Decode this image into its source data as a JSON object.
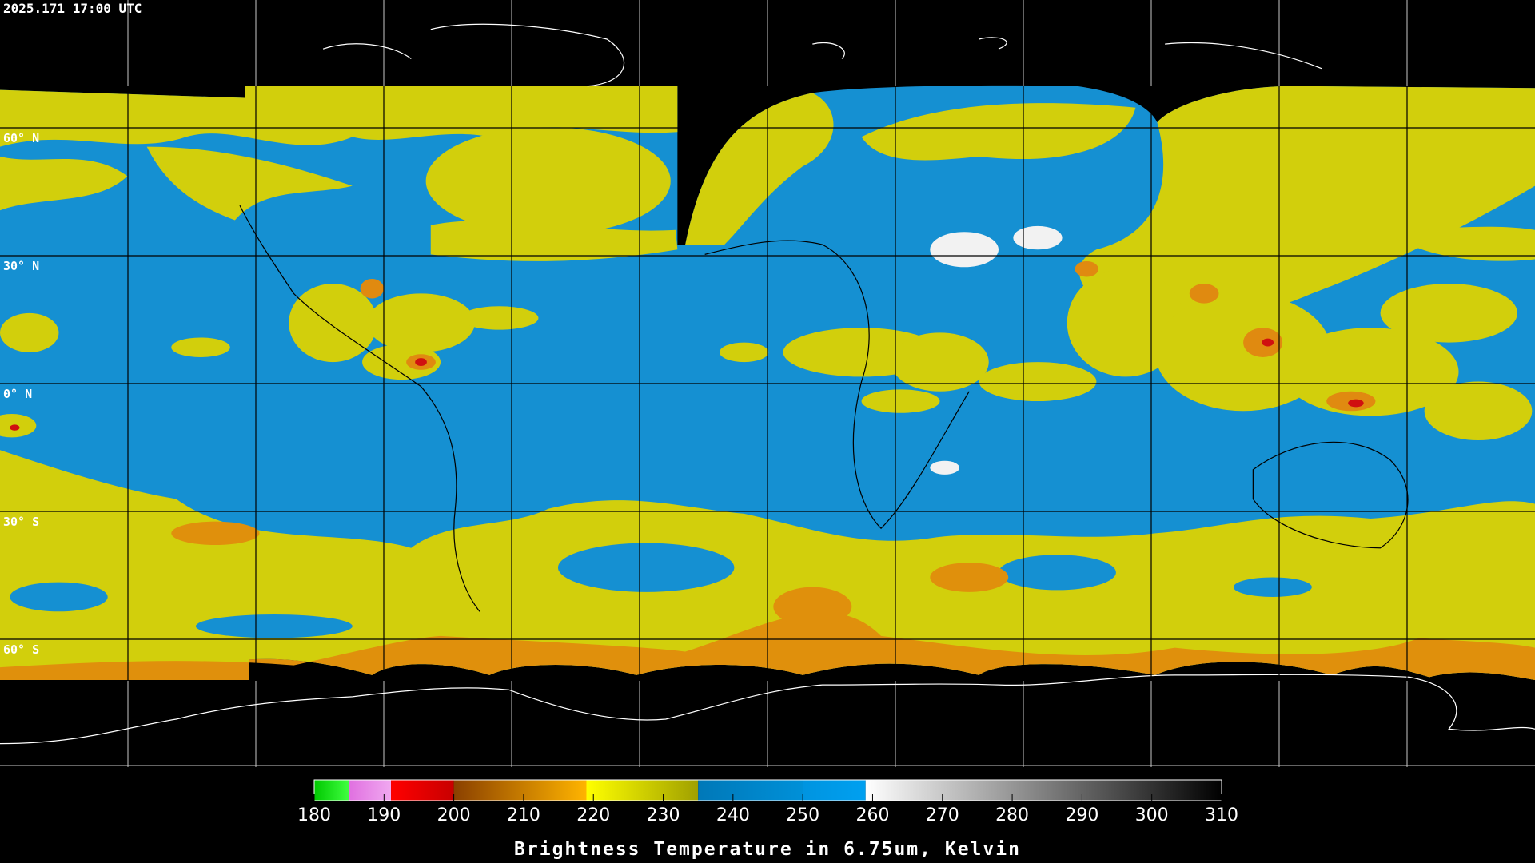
{
  "header": {
    "timestamp": "2025.171 17:00 UTC"
  },
  "map": {
    "lat_labels": [
      "60° N",
      "30° N",
      "0° N",
      "30° S",
      "60° S"
    ]
  },
  "colorbar": {
    "title": "Brightness Temperature in 6.75um, Kelvin",
    "lim": [
      180,
      310
    ],
    "ticks": [
      180,
      190,
      200,
      210,
      220,
      230,
      240,
      250,
      260,
      270,
      280,
      290,
      300,
      310
    ],
    "stops": [
      {
        "from": 180,
        "to": 185,
        "color_start": "#00c800",
        "color_end": "#40ff40"
      },
      {
        "from": 185,
        "to": 191,
        "color_start": "#e070e0",
        "color_end": "#f0a8f0"
      },
      {
        "from": 191,
        "to": 200,
        "color_start": "#ff0000",
        "color_end": "#c80000"
      },
      {
        "from": 200,
        "to": 219,
        "color_start": "#8a4000",
        "color_end": "#ffb400"
      },
      {
        "from": 219,
        "to": 235,
        "color_start": "#ffff00",
        "color_end": "#a0a000"
      },
      {
        "from": 235,
        "to": 250,
        "color_start": "#0078b8",
        "color_end": "#0090d8"
      },
      {
        "from": 250,
        "to": 259,
        "color_start": "#0094e0",
        "color_end": "#00a0f0"
      },
      {
        "from": 259,
        "to": 310,
        "color_start": "#ffffff",
        "color_end": "#000000"
      }
    ]
  }
}
